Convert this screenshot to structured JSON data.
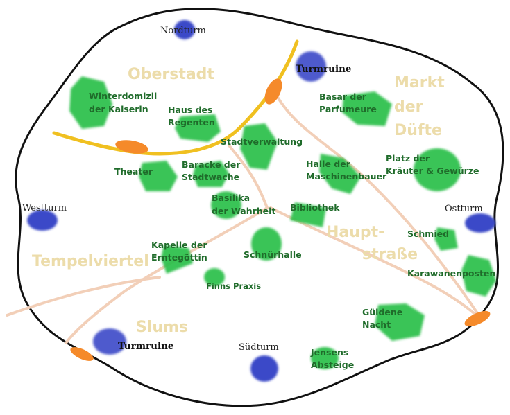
{
  "colors": {
    "wall": "#111111",
    "road": "#f2cfb8",
    "main_road": "#f0c020",
    "gate": "#f58a2a",
    "tower": "#3a48c8",
    "building": "#2bbf4a",
    "district_text": "#ecdcaa",
    "location_text": "#1f6b2a"
  },
  "districts": {
    "oberstadt": "Oberstadt",
    "markt": [
      "Markt",
      "der",
      "Düfte"
    ],
    "hauptstrasse": [
      "Haupt-",
      "straße"
    ],
    "tempelviertel": "Tempelviertel",
    "slums": "Slums"
  },
  "towers": {
    "nordturm": "Nordturm",
    "westturm": "Westturm",
    "ostturm": "Ostturm",
    "suedturm": "Südturm",
    "ruine_nord": "Turmruine",
    "ruine_sued": "Turmruine"
  },
  "locations": {
    "winterdomizil": [
      "Winterdomizil",
      "der Kaiserin"
    ],
    "haus_regenten": [
      "Haus des",
      "Regenten"
    ],
    "stadtverwaltung": "Stadtverwaltung",
    "basar": [
      "Basar der",
      "Parfumeure"
    ],
    "theater": "Theater",
    "baracke": [
      "Baracke der",
      "Stadtwache"
    ],
    "halle": [
      "Halle der",
      "Maschinenbauer"
    ],
    "platz": [
      "Platz der",
      "Kräuter & Gewürze"
    ],
    "basilika": [
      "Basilika",
      "der Wahrheit"
    ],
    "bibliothek": "Bibliothek",
    "schmied": "Schmied",
    "kapelle": [
      "Kapelle der",
      "Erntegöttin"
    ],
    "schnuerhalle": "Schnürhalle",
    "karawanenposten": "Karawanenposten",
    "finns_praxis": "Finns Praxis",
    "gueldene_nacht": [
      "Güldene",
      "Nacht"
    ],
    "jensens": [
      "Jensens",
      "Absteige"
    ]
  }
}
